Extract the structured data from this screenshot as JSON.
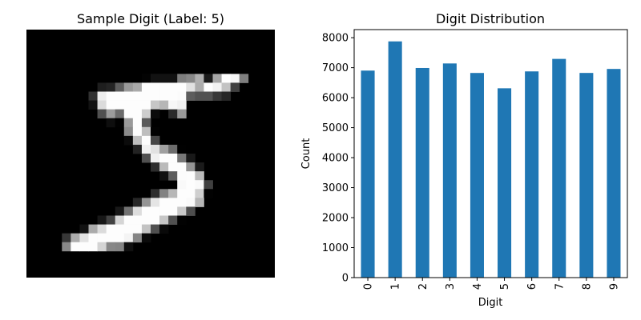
{
  "chart_data": [
    {
      "type": "heatmap",
      "title": "Sample Digit (Label: 5)",
      "colormap": "gray",
      "axis": "off",
      "grid_size": [
        28,
        28
      ],
      "value_range": [
        0,
        255
      ],
      "rows": [
        [
          0,
          0,
          0,
          0,
          0,
          0,
          0,
          0,
          0,
          0,
          0,
          0,
          0,
          0,
          0,
          0,
          0,
          0,
          0,
          0,
          0,
          0,
          0,
          0,
          0,
          0,
          0,
          0
        ],
        [
          0,
          0,
          0,
          0,
          0,
          0,
          0,
          0,
          0,
          0,
          0,
          0,
          0,
          0,
          0,
          0,
          0,
          0,
          0,
          0,
          0,
          0,
          0,
          0,
          0,
          0,
          0,
          0
        ],
        [
          0,
          0,
          0,
          0,
          0,
          0,
          0,
          0,
          0,
          0,
          0,
          0,
          0,
          0,
          0,
          0,
          0,
          0,
          0,
          0,
          0,
          0,
          0,
          0,
          0,
          0,
          0,
          0
        ],
        [
          0,
          0,
          0,
          0,
          0,
          0,
          0,
          0,
          0,
          0,
          0,
          0,
          0,
          0,
          0,
          0,
          0,
          0,
          0,
          0,
          0,
          0,
          0,
          0,
          0,
          0,
          0,
          0
        ],
        [
          0,
          0,
          0,
          0,
          0,
          0,
          0,
          0,
          0,
          0,
          0,
          0,
          0,
          0,
          0,
          0,
          0,
          0,
          0,
          0,
          0,
          0,
          0,
          0,
          0,
          0,
          0,
          0
        ],
        [
          0,
          0,
          0,
          0,
          0,
          0,
          0,
          0,
          0,
          0,
          0,
          0,
          0,
          3,
          18,
          18,
          18,
          126,
          136,
          175,
          26,
          166,
          255,
          247,
          127,
          0,
          0,
          0
        ],
        [
          0,
          0,
          0,
          0,
          0,
          0,
          0,
          0,
          30,
          36,
          94,
          154,
          170,
          253,
          253,
          253,
          253,
          253,
          225,
          172,
          253,
          242,
          195,
          64,
          0,
          0,
          0,
          0
        ],
        [
          0,
          0,
          0,
          0,
          0,
          0,
          0,
          49,
          238,
          253,
          253,
          253,
          253,
          253,
          253,
          253,
          253,
          251,
          93,
          82,
          82,
          56,
          39,
          0,
          0,
          0,
          0,
          0
        ],
        [
          0,
          0,
          0,
          0,
          0,
          0,
          0,
          18,
          219,
          253,
          253,
          253,
          253,
          253,
          198,
          182,
          247,
          241,
          0,
          0,
          0,
          0,
          0,
          0,
          0,
          0,
          0,
          0
        ],
        [
          0,
          0,
          0,
          0,
          0,
          0,
          0,
          0,
          80,
          156,
          107,
          253,
          253,
          205,
          11,
          0,
          43,
          154,
          0,
          0,
          0,
          0,
          0,
          0,
          0,
          0,
          0,
          0
        ],
        [
          0,
          0,
          0,
          0,
          0,
          0,
          0,
          0,
          0,
          14,
          1,
          154,
          253,
          90,
          0,
          0,
          0,
          0,
          0,
          0,
          0,
          0,
          0,
          0,
          0,
          0,
          0,
          0
        ],
        [
          0,
          0,
          0,
          0,
          0,
          0,
          0,
          0,
          0,
          0,
          0,
          139,
          253,
          190,
          2,
          0,
          0,
          0,
          0,
          0,
          0,
          0,
          0,
          0,
          0,
          0,
          0,
          0
        ],
        [
          0,
          0,
          0,
          0,
          0,
          0,
          0,
          0,
          0,
          0,
          0,
          11,
          190,
          253,
          70,
          0,
          0,
          0,
          0,
          0,
          0,
          0,
          0,
          0,
          0,
          0,
          0,
          0
        ],
        [
          0,
          0,
          0,
          0,
          0,
          0,
          0,
          0,
          0,
          0,
          0,
          0,
          35,
          241,
          225,
          160,
          108,
          1,
          0,
          0,
          0,
          0,
          0,
          0,
          0,
          0,
          0,
          0
        ],
        [
          0,
          0,
          0,
          0,
          0,
          0,
          0,
          0,
          0,
          0,
          0,
          0,
          0,
          81,
          240,
          253,
          253,
          119,
          25,
          0,
          0,
          0,
          0,
          0,
          0,
          0,
          0,
          0
        ],
        [
          0,
          0,
          0,
          0,
          0,
          0,
          0,
          0,
          0,
          0,
          0,
          0,
          0,
          0,
          45,
          186,
          253,
          253,
          150,
          27,
          0,
          0,
          0,
          0,
          0,
          0,
          0,
          0
        ],
        [
          0,
          0,
          0,
          0,
          0,
          0,
          0,
          0,
          0,
          0,
          0,
          0,
          0,
          0,
          0,
          16,
          93,
          252,
          253,
          187,
          0,
          0,
          0,
          0,
          0,
          0,
          0,
          0
        ],
        [
          0,
          0,
          0,
          0,
          0,
          0,
          0,
          0,
          0,
          0,
          0,
          0,
          0,
          0,
          0,
          0,
          0,
          249,
          253,
          249,
          64,
          0,
          0,
          0,
          0,
          0,
          0,
          0
        ],
        [
          0,
          0,
          0,
          0,
          0,
          0,
          0,
          0,
          0,
          0,
          0,
          0,
          0,
          0,
          46,
          130,
          183,
          253,
          253,
          207,
          2,
          0,
          0,
          0,
          0,
          0,
          0,
          0
        ],
        [
          0,
          0,
          0,
          0,
          0,
          0,
          0,
          0,
          0,
          0,
          0,
          0,
          39,
          148,
          229,
          253,
          253,
          253,
          250,
          182,
          0,
          0,
          0,
          0,
          0,
          0,
          0,
          0
        ],
        [
          0,
          0,
          0,
          0,
          0,
          0,
          0,
          0,
          0,
          0,
          24,
          114,
          221,
          253,
          253,
          253,
          253,
          201,
          78,
          0,
          0,
          0,
          0,
          0,
          0,
          0,
          0,
          0
        ],
        [
          0,
          0,
          0,
          0,
          0,
          0,
          0,
          0,
          23,
          66,
          213,
          253,
          253,
          253,
          253,
          198,
          81,
          2,
          0,
          0,
          0,
          0,
          0,
          0,
          0,
          0,
          0,
          0
        ],
        [
          0,
          0,
          0,
          0,
          0,
          0,
          18,
          171,
          219,
          253,
          253,
          253,
          253,
          195,
          80,
          9,
          0,
          0,
          0,
          0,
          0,
          0,
          0,
          0,
          0,
          0,
          0,
          0
        ],
        [
          0,
          0,
          0,
          0,
          55,
          172,
          226,
          253,
          253,
          253,
          253,
          244,
          133,
          11,
          0,
          0,
          0,
          0,
          0,
          0,
          0,
          0,
          0,
          0,
          0,
          0,
          0,
          0
        ],
        [
          0,
          0,
          0,
          0,
          136,
          253,
          253,
          253,
          212,
          135,
          132,
          16,
          0,
          0,
          0,
          0,
          0,
          0,
          0,
          0,
          0,
          0,
          0,
          0,
          0,
          0,
          0,
          0
        ],
        [
          0,
          0,
          0,
          0,
          0,
          0,
          0,
          0,
          0,
          0,
          0,
          0,
          0,
          0,
          0,
          0,
          0,
          0,
          0,
          0,
          0,
          0,
          0,
          0,
          0,
          0,
          0,
          0
        ],
        [
          0,
          0,
          0,
          0,
          0,
          0,
          0,
          0,
          0,
          0,
          0,
          0,
          0,
          0,
          0,
          0,
          0,
          0,
          0,
          0,
          0,
          0,
          0,
          0,
          0,
          0,
          0,
          0
        ],
        [
          0,
          0,
          0,
          0,
          0,
          0,
          0,
          0,
          0,
          0,
          0,
          0,
          0,
          0,
          0,
          0,
          0,
          0,
          0,
          0,
          0,
          0,
          0,
          0,
          0,
          0,
          0,
          0
        ]
      ]
    },
    {
      "type": "bar",
      "title": "Digit Distribution",
      "xlabel": "Digit",
      "ylabel": "Count",
      "categories": [
        "0",
        "1",
        "2",
        "3",
        "4",
        "5",
        "6",
        "7",
        "8",
        "9"
      ],
      "values": [
        6903,
        7877,
        6990,
        7141,
        6824,
        6313,
        6876,
        7293,
        6825,
        6958
      ],
      "ylim": [
        0,
        8270
      ],
      "yticks": [
        0,
        1000,
        2000,
        3000,
        4000,
        5000,
        6000,
        7000,
        8000
      ],
      "bar_color": "#1f77b4",
      "xtick_rotation": 90,
      "grid": false,
      "legend": "none"
    }
  ]
}
